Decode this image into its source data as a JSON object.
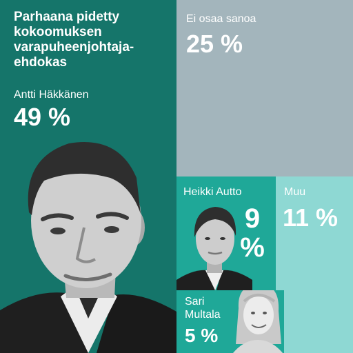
{
  "chart_data": {
    "type": "treemap",
    "title": "Parhaana pidetty kokoomuksen varapuheenjohtaja-ehdokas",
    "series": [
      {
        "name": "Antti Häkkänen",
        "value": 49,
        "value_label": "49 %",
        "color": "#15756a"
      },
      {
        "name": "Ei osaa sanoa",
        "value": 25,
        "value_label": "25 %",
        "color": "#a3b5bc"
      },
      {
        "name": "Heikki Autto",
        "value": 9,
        "value_label": "9 %",
        "color": "#1fa898"
      },
      {
        "name": "Muu",
        "value": 11,
        "value_label": "11 %",
        "color": "#8ed8d3"
      },
      {
        "name": "Sari Multala",
        "value": 5,
        "value_label": "5 %",
        "color": "#1fa898"
      }
    ]
  },
  "portraits": [
    {
      "icon": "portrait-man-icon",
      "person": "Antti Häkkänen"
    },
    {
      "icon": "portrait-man-icon",
      "person": "Heikki Autto"
    },
    {
      "icon": "portrait-woman-icon",
      "person": "Sari Multala"
    }
  ]
}
